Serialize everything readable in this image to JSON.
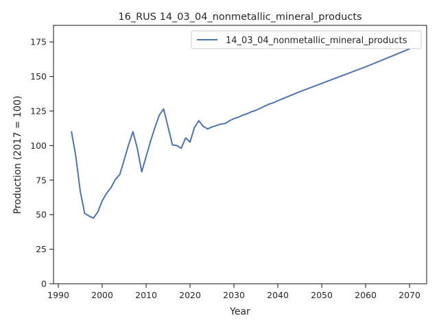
{
  "chart_data": {
    "type": "line",
    "title": "16_RUS 14_03_04_nonmetallic_mineral_products",
    "xlabel": "Year",
    "ylabel": "Production (2017 = 100)",
    "xlim": [
      1988.9,
      2073.9
    ],
    "ylim": [
      0,
      187
    ],
    "xticks": [
      1990,
      2000,
      2010,
      2020,
      2030,
      2040,
      2050,
      2060,
      2070
    ],
    "yticks": [
      0,
      25,
      50,
      75,
      100,
      125,
      150,
      175
    ],
    "grid": false,
    "legend": "top-right",
    "colors": {
      "line": "#4c72b0",
      "axis": "#262626"
    },
    "series": [
      {
        "name": "14_03_04_nonmetallic_mineral_products",
        "x": [
          1993,
          1994,
          1995,
          1996,
          1997,
          1998,
          1999,
          2000,
          2001,
          2002,
          2003,
          2004,
          2005,
          2006,
          2007,
          2008,
          2009,
          2010,
          2011,
          2012,
          2013,
          2014,
          2015,
          2016,
          2017,
          2018,
          2019,
          2020,
          2021,
          2022,
          2023,
          2024,
          2025,
          2026,
          2027,
          2028,
          2029,
          2030,
          2031,
          2032,
          2033,
          2034,
          2035,
          2036,
          2037,
          2038,
          2039,
          2040,
          2045,
          2050,
          2055,
          2060,
          2065,
          2070
        ],
        "y": [
          110,
          92,
          67,
          51,
          49,
          47.5,
          52,
          60,
          65.5,
          69.5,
          75.5,
          79,
          89.5,
          100.5,
          110,
          98,
          81,
          92,
          103,
          113,
          122,
          126.5,
          113.5,
          100.5,
          100,
          98,
          105.5,
          102.5,
          113,
          118,
          114,
          112,
          113.5,
          114.5,
          115.5,
          116,
          118,
          119.5,
          120.5,
          122,
          123,
          124.5,
          125.5,
          127,
          128.5,
          130,
          131,
          132.5,
          139,
          145,
          151,
          157,
          163.5,
          170
        ]
      }
    ]
  }
}
